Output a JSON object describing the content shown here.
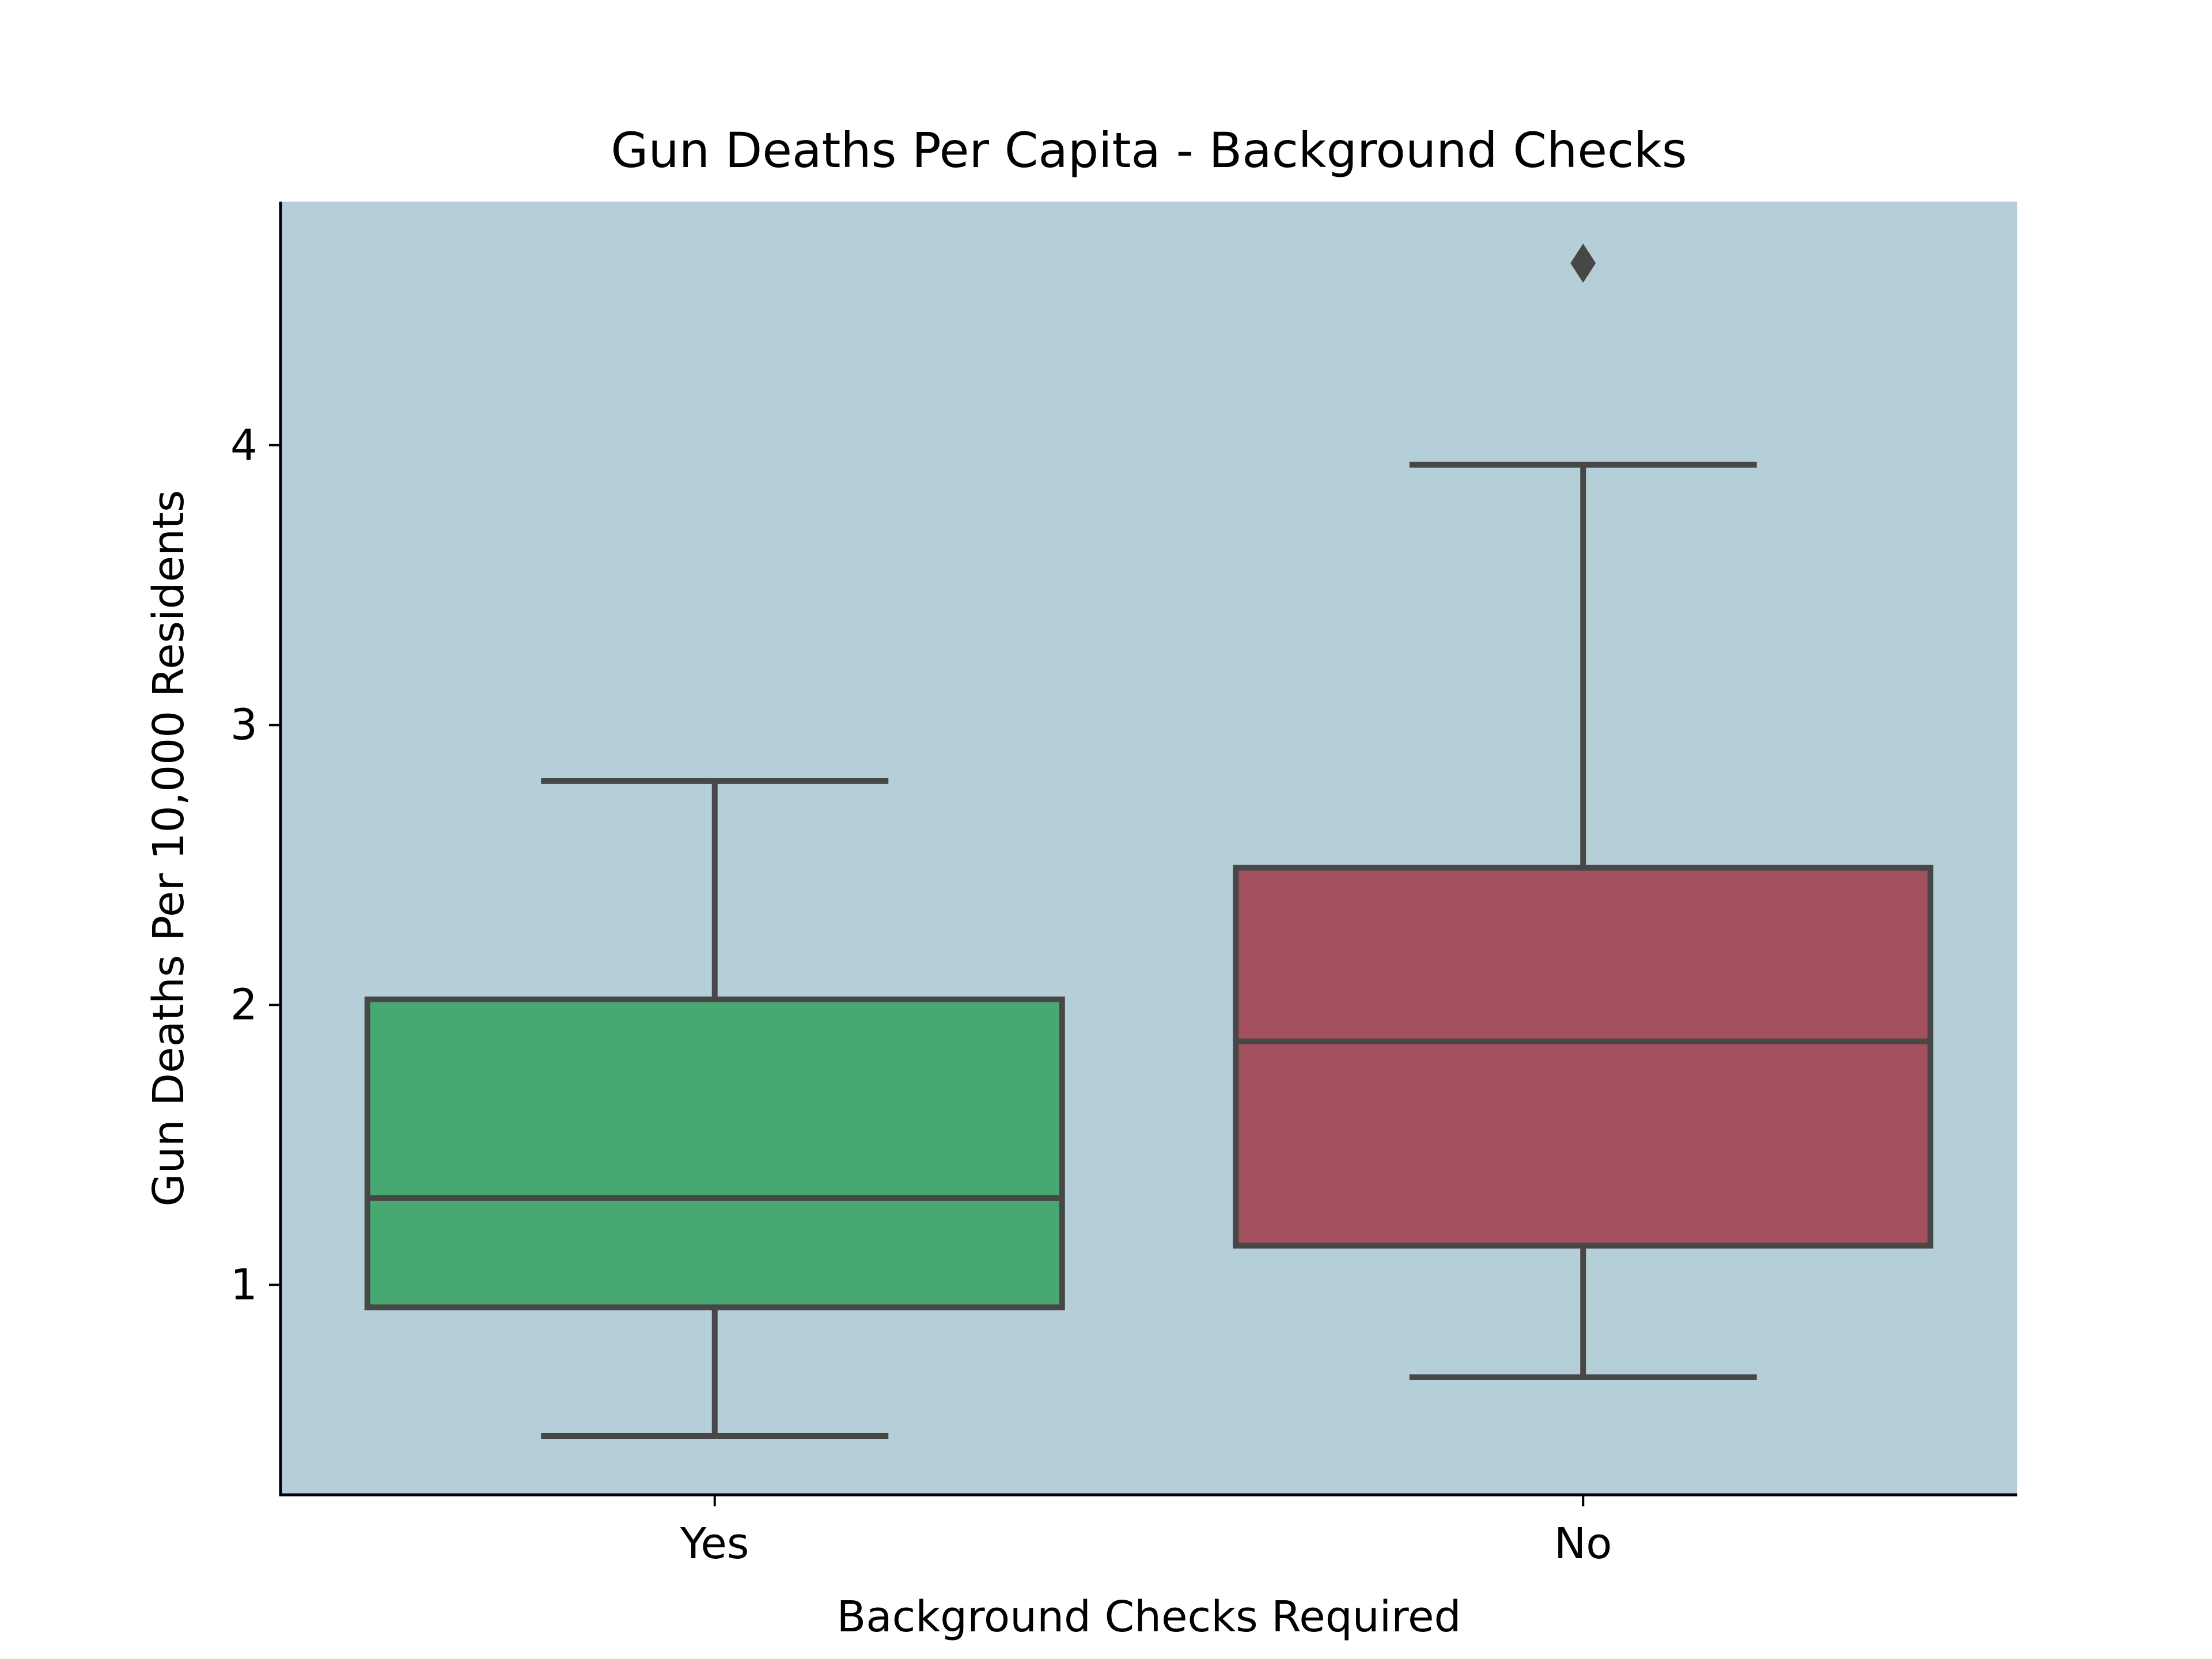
{
  "chart_data": {
    "type": "box",
    "title": "Gun Deaths Per Capita - Background Checks",
    "xlabel": "Background Checks Required",
    "ylabel": "Gun Deaths Per 10,000 Residents",
    "categories": [
      "Yes",
      "No"
    ],
    "yticks": [
      "1",
      "2",
      "3",
      "4"
    ],
    "ylim": [
      0.25,
      4.87
    ],
    "grid": false,
    "boxes": [
      {
        "category": "Yes",
        "color": "#48a872",
        "whisker_low": 0.46,
        "q1": 0.92,
        "median": 1.31,
        "q3": 2.02,
        "whisker_high": 2.8,
        "outliers": []
      },
      {
        "category": "No",
        "color": "#a3505e",
        "whisker_low": 0.67,
        "q1": 1.14,
        "median": 1.87,
        "q3": 2.49,
        "whisker_high": 3.93,
        "outliers": [
          4.65
        ]
      }
    ],
    "colors": {
      "plot_background": "#b5cfd8",
      "box_edge": "#474747",
      "axis": "#000000"
    }
  }
}
